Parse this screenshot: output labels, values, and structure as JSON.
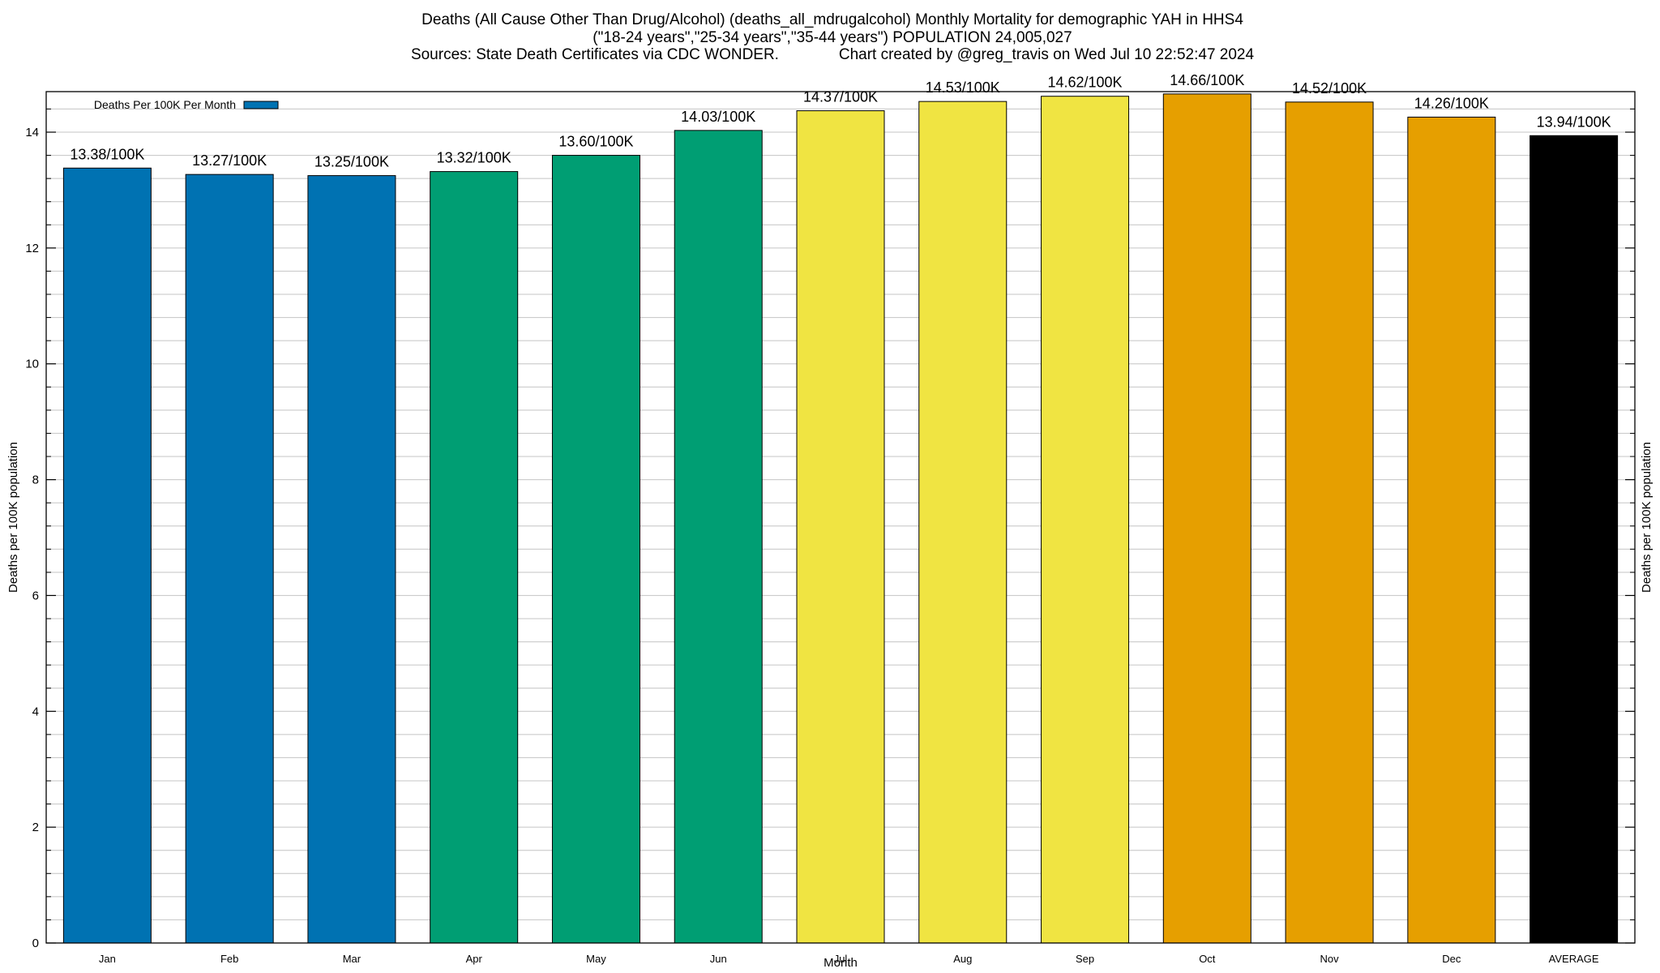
{
  "chart_data": {
    "type": "bar",
    "title_lines": [
      "Deaths (All Cause Other Than Drug/Alcohol) (deaths_all_mdrugalcohol) Monthly Mortality for demographic YAH in HHS4",
      "(\"18-24 years\",\"25-34 years\",\"35-44 years\") POPULATION 24,005,027",
      "Sources: State Death Certificates via CDC WONDER.              Chart created by @greg_travis on Wed Jul 10 22:52:47 2024"
    ],
    "xlabel": "Month",
    "ylabel": "Deaths per 100K population",
    "ylabel_right": "Deaths per 100K population",
    "ylim": [
      0,
      14.7
    ],
    "y_ticks": [
      0,
      2,
      4,
      6,
      8,
      10,
      12,
      14
    ],
    "y_minor_step": 0.4,
    "grid": true,
    "legend": {
      "position": "top-left",
      "entries": [
        {
          "name": "Deaths Per 100K Per Month",
          "color": "#0072b2"
        }
      ]
    },
    "categories": [
      "Jan",
      "Feb",
      "Mar",
      "Apr",
      "May",
      "Jun",
      "Jul",
      "Aug",
      "Sep",
      "Oct",
      "Nov",
      "Dec",
      "AVERAGE"
    ],
    "values": [
      13.38,
      13.27,
      13.25,
      13.32,
      13.6,
      14.03,
      14.37,
      14.53,
      14.62,
      14.66,
      14.52,
      14.26,
      13.94
    ],
    "data_labels": [
      "13.38/100K",
      "13.27/100K",
      "13.25/100K",
      "13.32/100K",
      "13.60/100K",
      "14.03/100K",
      "14.37/100K",
      "14.53/100K",
      "14.62/100K",
      "14.66/100K",
      "14.52/100K",
      "14.26/100K",
      "13.94/100K"
    ],
    "colors": [
      "#0072b2",
      "#0072b2",
      "#0072b2",
      "#009e73",
      "#009e73",
      "#009e73",
      "#f0e442",
      "#f0e442",
      "#f0e442",
      "#e69f00",
      "#e69f00",
      "#e69f00",
      "#000000"
    ]
  }
}
